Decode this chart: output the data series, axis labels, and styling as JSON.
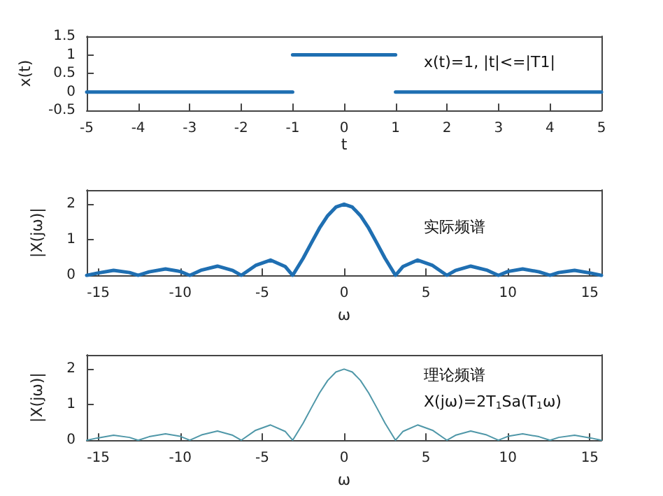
{
  "chart_data": [
    {
      "type": "line",
      "xlabel": "t",
      "ylabel": "x(t)",
      "xlim": [
        -5,
        5
      ],
      "xticks": [
        -5,
        -4,
        -3,
        -2,
        -1,
        0,
        1,
        2,
        3,
        4,
        5
      ],
      "ylim": [
        -0.5,
        1.5
      ],
      "yticks": [
        -0.5,
        0,
        0.5,
        1,
        1.5
      ],
      "grid": false,
      "marker": "none",
      "line_style": "solid",
      "annotations": [
        "x(t)=1, |t|<=|T1|"
      ],
      "series": [
        {
          "color": "#1f6fb2",
          "x": [
            -5,
            -1
          ],
          "values": [
            0,
            0
          ]
        },
        {
          "color": "#1f6fb2",
          "x": [
            -1,
            1
          ],
          "values": [
            1,
            1
          ]
        },
        {
          "color": "#1f6fb2",
          "x": [
            1,
            5
          ],
          "values": [
            0,
            0
          ]
        }
      ]
    },
    {
      "type": "line",
      "xlabel": "ω",
      "ylabel": "|X(jω)|",
      "xlim": [
        -15.71,
        15.71
      ],
      "xticks": [
        -15,
        -10,
        -5,
        0,
        5,
        10,
        15
      ],
      "ylim": [
        0,
        2.4
      ],
      "yticks": [
        0,
        1,
        2
      ],
      "grid": false,
      "marker": "none",
      "line_style": "solid",
      "annotations": [
        "实际频谱"
      ],
      "series": [
        {
          "color": "#1f6fb2",
          "x": [
            -15.71,
            -15.1,
            -14.07,
            -13.1,
            -12.57,
            -11.9,
            -10.9,
            -10.0,
            -9.42,
            -8.7,
            -7.73,
            -6.8,
            -6.28,
            -5.4,
            -4.49,
            -3.6,
            -3.14,
            -2.5,
            -2,
            -1.5,
            -1,
            -0.5,
            0,
            0.5,
            1,
            1.5,
            2,
            2.5,
            3.14,
            3.6,
            4.49,
            5.4,
            6.28,
            6.8,
            7.73,
            8.7,
            9.42,
            10.0,
            10.9,
            11.9,
            12.57,
            13.1,
            14.07,
            15.1,
            15.71
          ],
          "values": [
            0,
            0.06,
            0.14,
            0.08,
            0,
            0.1,
            0.18,
            0.11,
            0,
            0.15,
            0.26,
            0.14,
            0,
            0.28,
            0.43,
            0.25,
            0,
            0.48,
            0.91,
            1.33,
            1.68,
            1.92,
            2,
            1.92,
            1.68,
            1.33,
            0.91,
            0.48,
            0,
            0.25,
            0.43,
            0.28,
            0,
            0.14,
            0.26,
            0.15,
            0,
            0.11,
            0.18,
            0.1,
            0,
            0.08,
            0.14,
            0.06,
            0
          ]
        }
      ]
    },
    {
      "type": "line",
      "xlabel": "ω",
      "ylabel": "|X(jω)|",
      "xlim": [
        -15.71,
        15.71
      ],
      "xticks": [
        -15,
        -10,
        -5,
        0,
        5,
        10,
        15
      ],
      "ylim": [
        0,
        2.4
      ],
      "yticks": [
        0,
        1,
        2
      ],
      "grid": false,
      "marker": "none",
      "line_style": "solid",
      "annotations": [
        "理论频谱",
        "X(jω)=2T$_{1}$Sa(T$_{1}$ω)"
      ],
      "series": [
        {
          "color": "#4f97a8",
          "x": [
            -15.71,
            -15.1,
            -14.07,
            -13.1,
            -12.57,
            -11.9,
            -10.9,
            -10.0,
            -9.42,
            -8.7,
            -7.73,
            -6.8,
            -6.28,
            -5.4,
            -4.49,
            -3.6,
            -3.14,
            -2.5,
            -2,
            -1.5,
            -1,
            -0.5,
            0,
            0.5,
            1,
            1.5,
            2,
            2.5,
            3.14,
            3.6,
            4.49,
            5.4,
            6.28,
            6.8,
            7.73,
            8.7,
            9.42,
            10.0,
            10.9,
            11.9,
            12.57,
            13.1,
            14.07,
            15.1,
            15.71
          ],
          "values": [
            0,
            0.06,
            0.14,
            0.08,
            0,
            0.1,
            0.18,
            0.11,
            0,
            0.15,
            0.26,
            0.14,
            0,
            0.28,
            0.43,
            0.25,
            0,
            0.48,
            0.91,
            1.33,
            1.68,
            1.92,
            2,
            1.92,
            1.68,
            1.33,
            0.91,
            0.48,
            0,
            0.25,
            0.43,
            0.28,
            0,
            0.14,
            0.26,
            0.15,
            0,
            0.11,
            0.18,
            0.1,
            0,
            0.08,
            0.14,
            0.06,
            0
          ]
        }
      ]
    }
  ]
}
